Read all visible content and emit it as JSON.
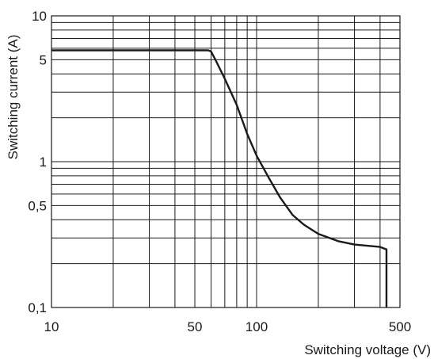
{
  "chart_data": {
    "type": "line",
    "title": "",
    "xlabel": "Switching voltage (V)",
    "ylabel": "Switching current (A)",
    "xscale": "log",
    "yscale": "log",
    "xlim": [
      10,
      500
    ],
    "ylim": [
      0.1,
      10
    ],
    "grid": true,
    "legend": "none",
    "line_color": "#1a1a1a",
    "grid_color": "#1a1a1a",
    "x_ticks": [
      {
        "value": 10,
        "label": "10"
      },
      {
        "value": 50,
        "label": "50"
      },
      {
        "value": 100,
        "label": "100"
      },
      {
        "value": 500,
        "label": "500"
      }
    ],
    "y_ticks": [
      {
        "value": 0.1,
        "label": "0,1"
      },
      {
        "value": 0.5,
        "label": "0,5"
      },
      {
        "value": 1,
        "label": "1"
      },
      {
        "value": 5,
        "label": "5"
      },
      {
        "value": 10,
        "label": "10"
      }
    ],
    "x_gridlines": [
      20,
      30,
      40,
      50,
      60,
      70,
      80,
      90,
      100,
      200,
      300,
      400
    ],
    "y_gridlines": [
      0.2,
      0.3,
      0.4,
      0.5,
      0.6,
      0.7,
      0.8,
      0.9,
      1,
      2,
      3,
      4,
      5,
      6,
      7,
      8,
      9
    ],
    "series": [
      {
        "x": [
          10,
          30,
          50,
          58,
          60,
          63,
          70,
          80,
          90,
          100,
          115,
          130,
          150,
          170,
          200,
          250,
          300,
          400,
          430,
          430
        ],
        "y": [
          5.8,
          5.8,
          5.8,
          5.8,
          5.7,
          5.0,
          3.7,
          2.45,
          1.55,
          1.1,
          0.77,
          0.57,
          0.43,
          0.37,
          0.32,
          0.285,
          0.27,
          0.26,
          0.25,
          0.1
        ]
      }
    ]
  }
}
